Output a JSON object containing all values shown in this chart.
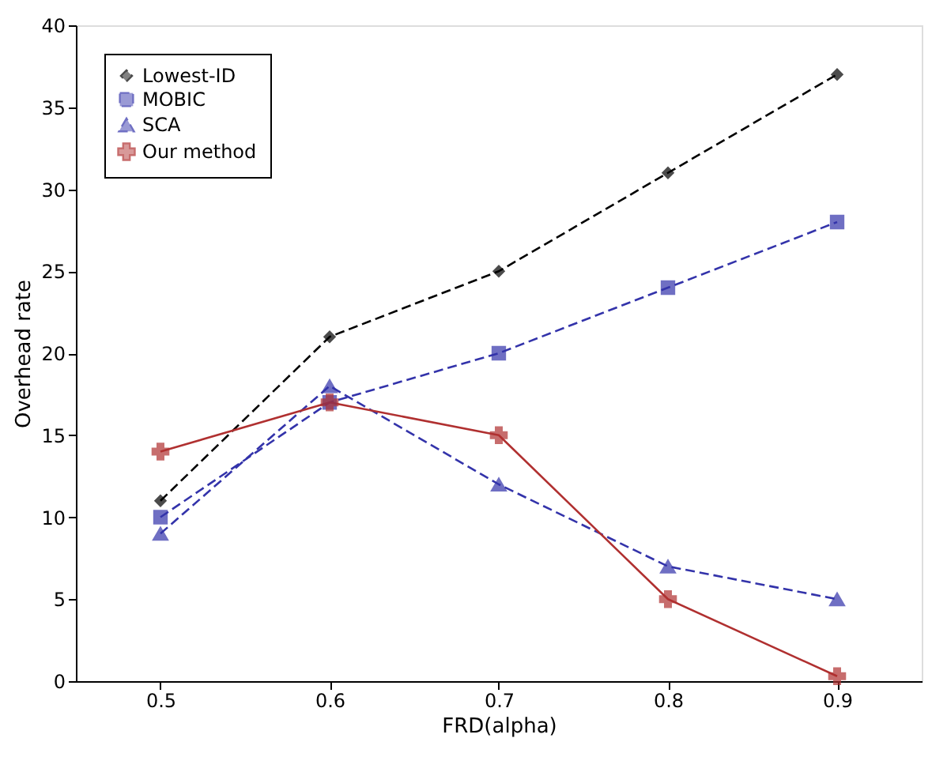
{
  "chart_data": {
    "type": "line",
    "xlabel": "FRD(alpha)",
    "ylabel": "Overhead rate",
    "x": [
      0.5,
      0.6,
      0.7,
      0.8,
      0.9
    ],
    "series": [
      {
        "name": "Lowest-ID",
        "color": "#000000",
        "marker": "diamond",
        "line_style": "dashed",
        "values": [
          11,
          21,
          25,
          31,
          37
        ]
      },
      {
        "name": "MOBIC",
        "color": "#3333aa",
        "marker": "square",
        "line_style": "dashed",
        "values": [
          10,
          17,
          20,
          24,
          28
        ]
      },
      {
        "name": "SCA",
        "color": "#3333aa",
        "marker": "triangle",
        "line_style": "dashed",
        "values": [
          9,
          18,
          12,
          7,
          5
        ]
      },
      {
        "name": "Our method",
        "color": "#b03030",
        "marker": "cross",
        "line_style": "solid",
        "values": [
          14,
          17,
          15,
          5,
          0.3
        ]
      }
    ],
    "xlim": [
      0.45,
      0.95
    ],
    "xticks": [
      0.5,
      0.6,
      0.7,
      0.8,
      0.9
    ],
    "ylim": [
      0,
      40
    ],
    "yticks": [
      0,
      5,
      10,
      15,
      20,
      25,
      30,
      35,
      40
    ],
    "grid": false,
    "legend": "top left"
  }
}
